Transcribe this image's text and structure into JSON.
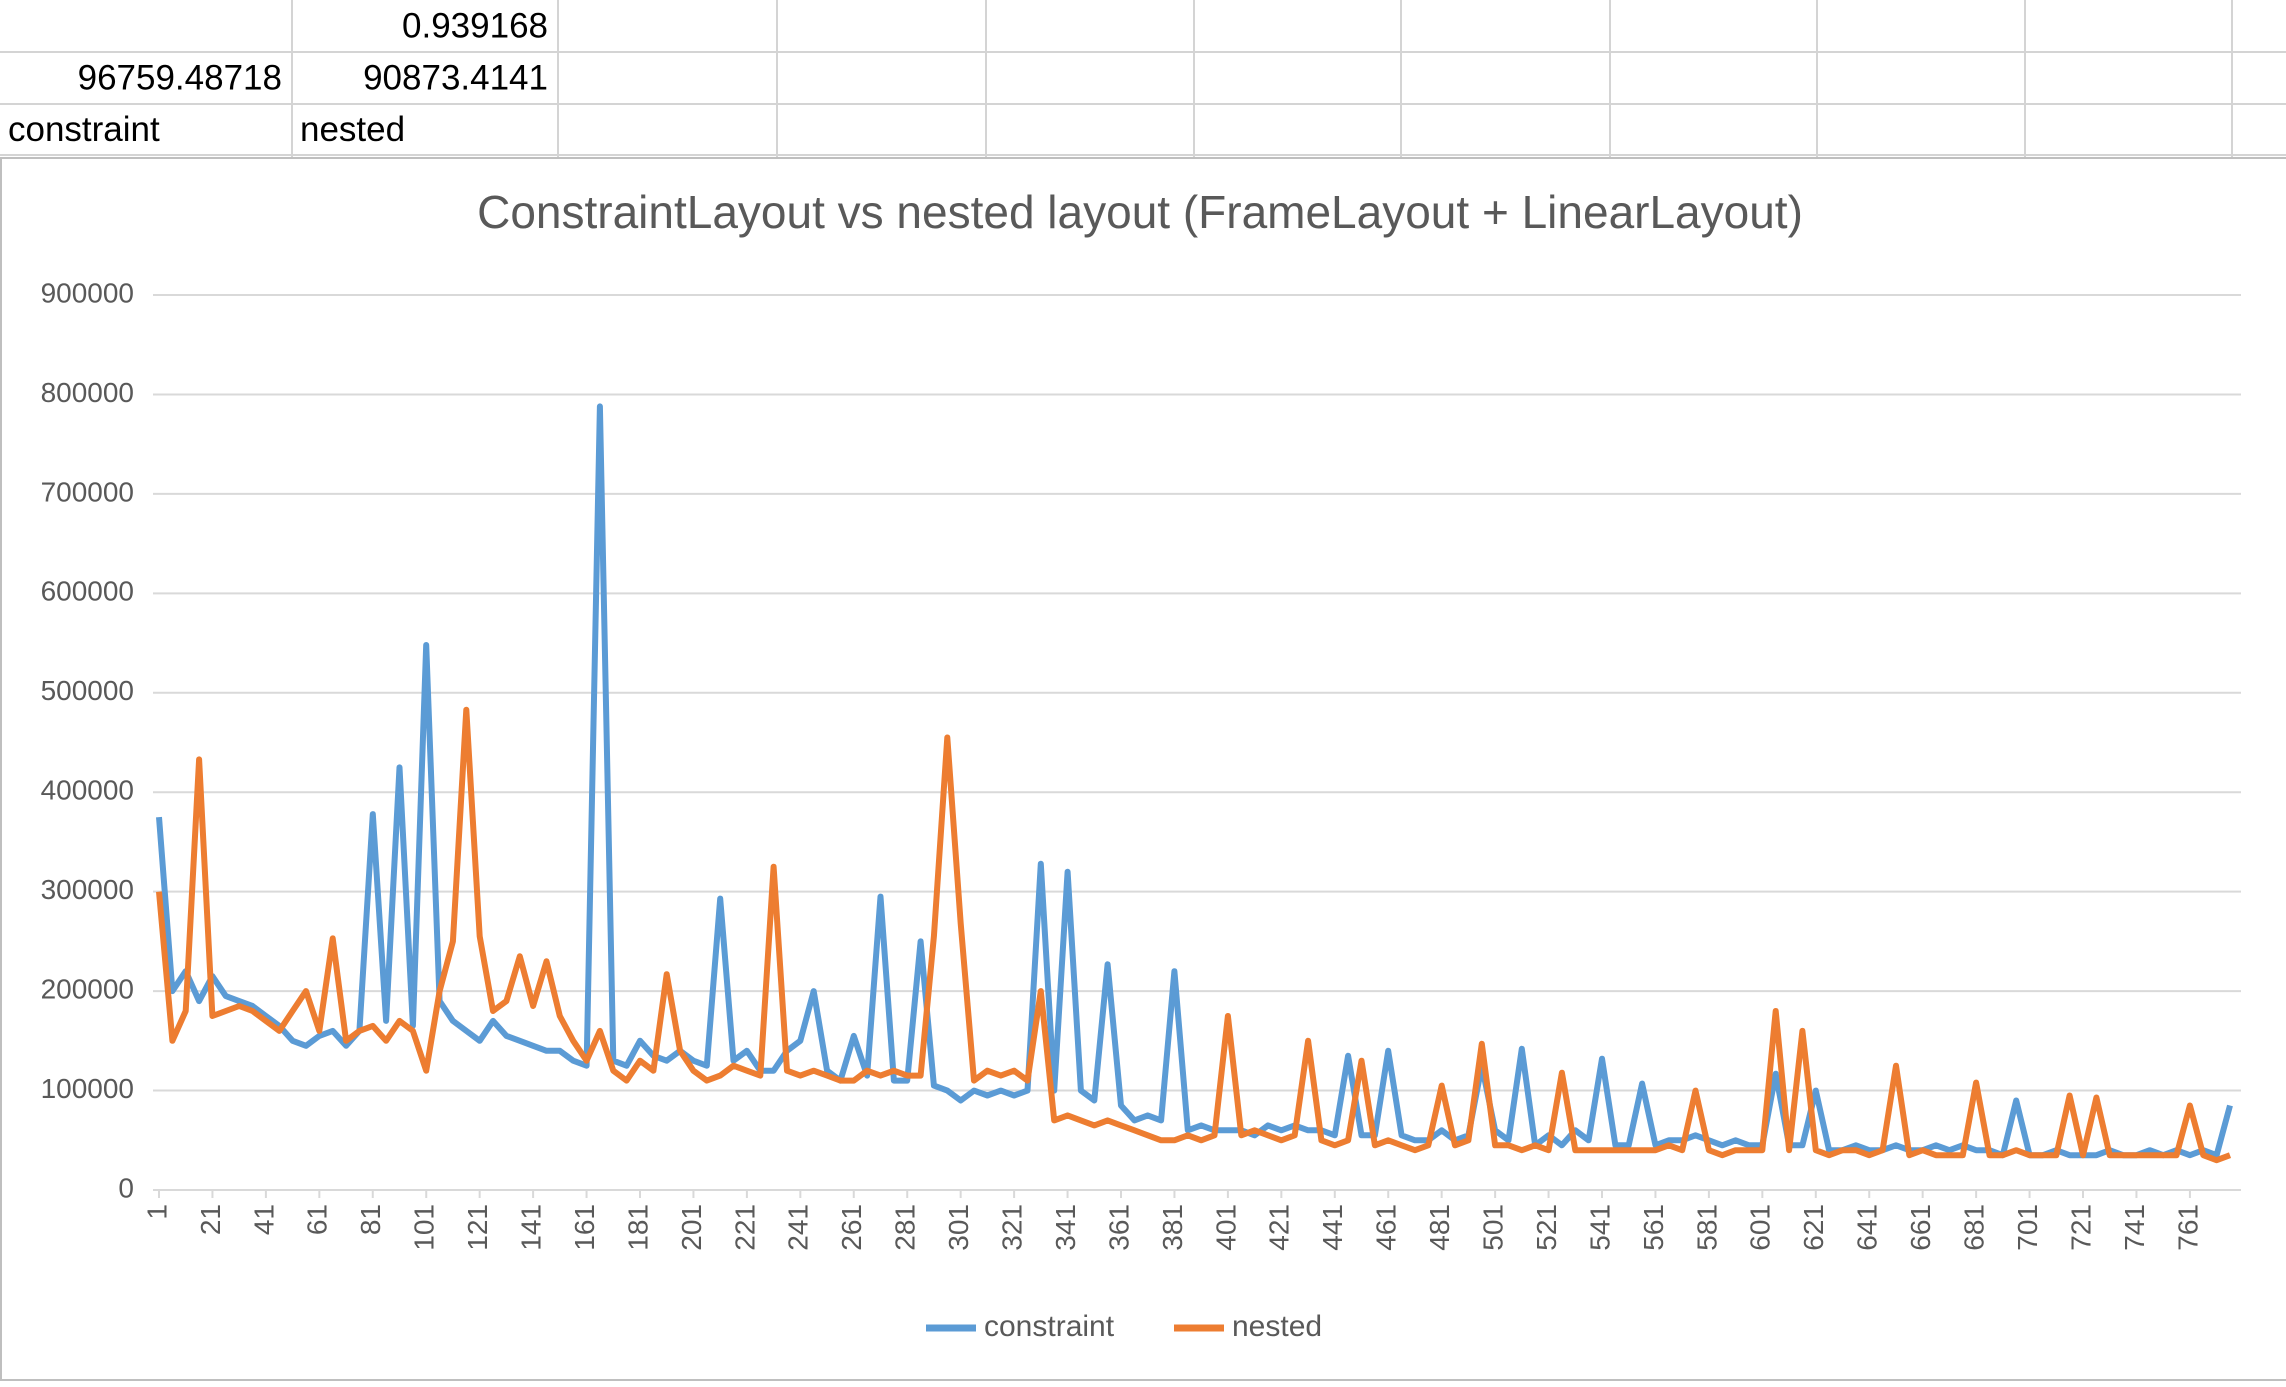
{
  "sheet": {
    "rows": [
      [
        null,
        "0.939168"
      ],
      [
        "96759.48718",
        "90873.4141"
      ],
      [
        "constraint",
        "nested"
      ]
    ]
  },
  "chart_data": {
    "type": "line",
    "title": "ConstraintLayout vs nested layout (FrameLayout + LinearLayout)",
    "x": [
      1,
      6,
      11,
      16,
      21,
      26,
      31,
      36,
      41,
      46,
      51,
      56,
      61,
      66,
      71,
      76,
      81,
      86,
      91,
      96,
      101,
      106,
      111,
      116,
      121,
      126,
      131,
      136,
      141,
      146,
      151,
      156,
      161,
      166,
      171,
      176,
      181,
      186,
      191,
      196,
      201,
      206,
      211,
      216,
      221,
      226,
      231,
      236,
      241,
      246,
      251,
      256,
      261,
      266,
      271,
      276,
      281,
      286,
      291,
      296,
      301,
      306,
      311,
      316,
      321,
      326,
      331,
      336,
      341,
      346,
      351,
      356,
      361,
      366,
      371,
      376,
      381,
      386,
      391,
      396,
      401,
      406,
      411,
      416,
      421,
      426,
      431,
      436,
      441,
      446,
      451,
      456,
      461,
      466,
      471,
      476,
      481,
      486,
      491,
      496,
      501,
      506,
      511,
      516,
      521,
      526,
      531,
      536,
      541,
      546,
      551,
      556,
      561,
      566,
      571,
      576,
      581,
      586,
      591,
      596,
      601,
      606,
      611,
      616,
      621,
      626,
      631,
      636,
      641,
      646,
      651,
      656,
      661,
      666,
      671,
      676,
      681,
      686,
      691,
      696,
      701,
      706,
      711,
      716,
      721,
      726,
      731,
      736,
      741,
      746,
      751,
      756,
      761,
      766,
      771,
      776
    ],
    "series": [
      {
        "name": "constraint",
        "color": "#5b9bd5",
        "values": [
          375000,
          200000,
          220000,
          190000,
          215000,
          195000,
          190000,
          185000,
          175000,
          165000,
          150000,
          145000,
          155000,
          160000,
          145000,
          160000,
          378000,
          170000,
          425000,
          165000,
          548000,
          190000,
          170000,
          160000,
          150000,
          170000,
          155000,
          150000,
          145000,
          140000,
          140000,
          130000,
          125000,
          788000,
          130000,
          125000,
          150000,
          135000,
          130000,
          140000,
          130000,
          125000,
          293000,
          130000,
          140000,
          120000,
          120000,
          140000,
          150000,
          200000,
          120000,
          110000,
          155000,
          115000,
          295000,
          110000,
          110000,
          250000,
          105000,
          100000,
          90000,
          100000,
          95000,
          100000,
          95000,
          100000,
          328000,
          100000,
          320000,
          100000,
          90000,
          227000,
          85000,
          70000,
          75000,
          70000,
          220000,
          60000,
          65000,
          60000,
          60000,
          60000,
          55000,
          65000,
          60000,
          65000,
          60000,
          60000,
          55000,
          135000,
          55000,
          55000,
          140000,
          55000,
          50000,
          50000,
          60000,
          50000,
          55000,
          125000,
          60000,
          50000,
          142000,
          45000,
          55000,
          45000,
          60000,
          50000,
          132000,
          45000,
          45000,
          107000,
          45000,
          50000,
          50000,
          55000,
          50000,
          45000,
          50000,
          45000,
          45000,
          117000,
          45000,
          45000,
          100000,
          40000,
          40000,
          45000,
          40000,
          40000,
          45000,
          40000,
          40000,
          45000,
          40000,
          45000,
          40000,
          40000,
          35000,
          90000,
          35000,
          35000,
          40000,
          35000,
          35000,
          35000,
          40000,
          35000,
          35000,
          40000,
          35000,
          40000,
          35000,
          40000,
          35000,
          85000
        ]
      },
      {
        "name": "nested",
        "color": "#ed7d31",
        "values": [
          300000,
          150000,
          180000,
          433000,
          175000,
          180000,
          185000,
          180000,
          170000,
          160000,
          180000,
          200000,
          160000,
          253000,
          150000,
          160000,
          165000,
          150000,
          170000,
          160000,
          120000,
          200000,
          250000,
          483000,
          255000,
          180000,
          190000,
          235000,
          185000,
          230000,
          175000,
          150000,
          130000,
          160000,
          120000,
          110000,
          130000,
          120000,
          217000,
          140000,
          120000,
          110000,
          115000,
          125000,
          120000,
          115000,
          325000,
          120000,
          115000,
          120000,
          115000,
          110000,
          110000,
          120000,
          115000,
          120000,
          115000,
          115000,
          255000,
          455000,
          268000,
          110000,
          120000,
          115000,
          120000,
          110000,
          200000,
          70000,
          75000,
          70000,
          65000,
          70000,
          65000,
          60000,
          55000,
          50000,
          50000,
          55000,
          50000,
          55000,
          175000,
          55000,
          60000,
          55000,
          50000,
          55000,
          150000,
          50000,
          45000,
          50000,
          130000,
          45000,
          50000,
          45000,
          40000,
          45000,
          105000,
          45000,
          50000,
          147000,
          45000,
          45000,
          40000,
          45000,
          40000,
          118000,
          40000,
          40000,
          40000,
          40000,
          40000,
          40000,
          40000,
          45000,
          40000,
          100000,
          40000,
          35000,
          40000,
          40000,
          40000,
          180000,
          40000,
          160000,
          40000,
          35000,
          40000,
          40000,
          35000,
          40000,
          125000,
          35000,
          40000,
          35000,
          35000,
          35000,
          108000,
          35000,
          35000,
          40000,
          35000,
          35000,
          35000,
          95000,
          35000,
          93000,
          35000,
          35000,
          35000,
          35000,
          35000,
          35000,
          85000,
          35000,
          30000,
          35000
        ]
      }
    ],
    "xlim": [
      1,
      779
    ],
    "xticks": [
      1,
      21,
      41,
      61,
      81,
      101,
      121,
      141,
      161,
      181,
      201,
      221,
      241,
      261,
      281,
      301,
      321,
      341,
      361,
      381,
      401,
      421,
      441,
      461,
      481,
      501,
      521,
      541,
      561,
      581,
      601,
      621,
      641,
      661,
      681,
      701,
      721,
      741,
      761
    ],
    "ylim": [
      0,
      900000
    ],
    "yticks": [
      0,
      100000,
      200000,
      300000,
      400000,
      500000,
      600000,
      700000,
      800000,
      900000
    ],
    "grid": true,
    "legend": "bottom"
  }
}
